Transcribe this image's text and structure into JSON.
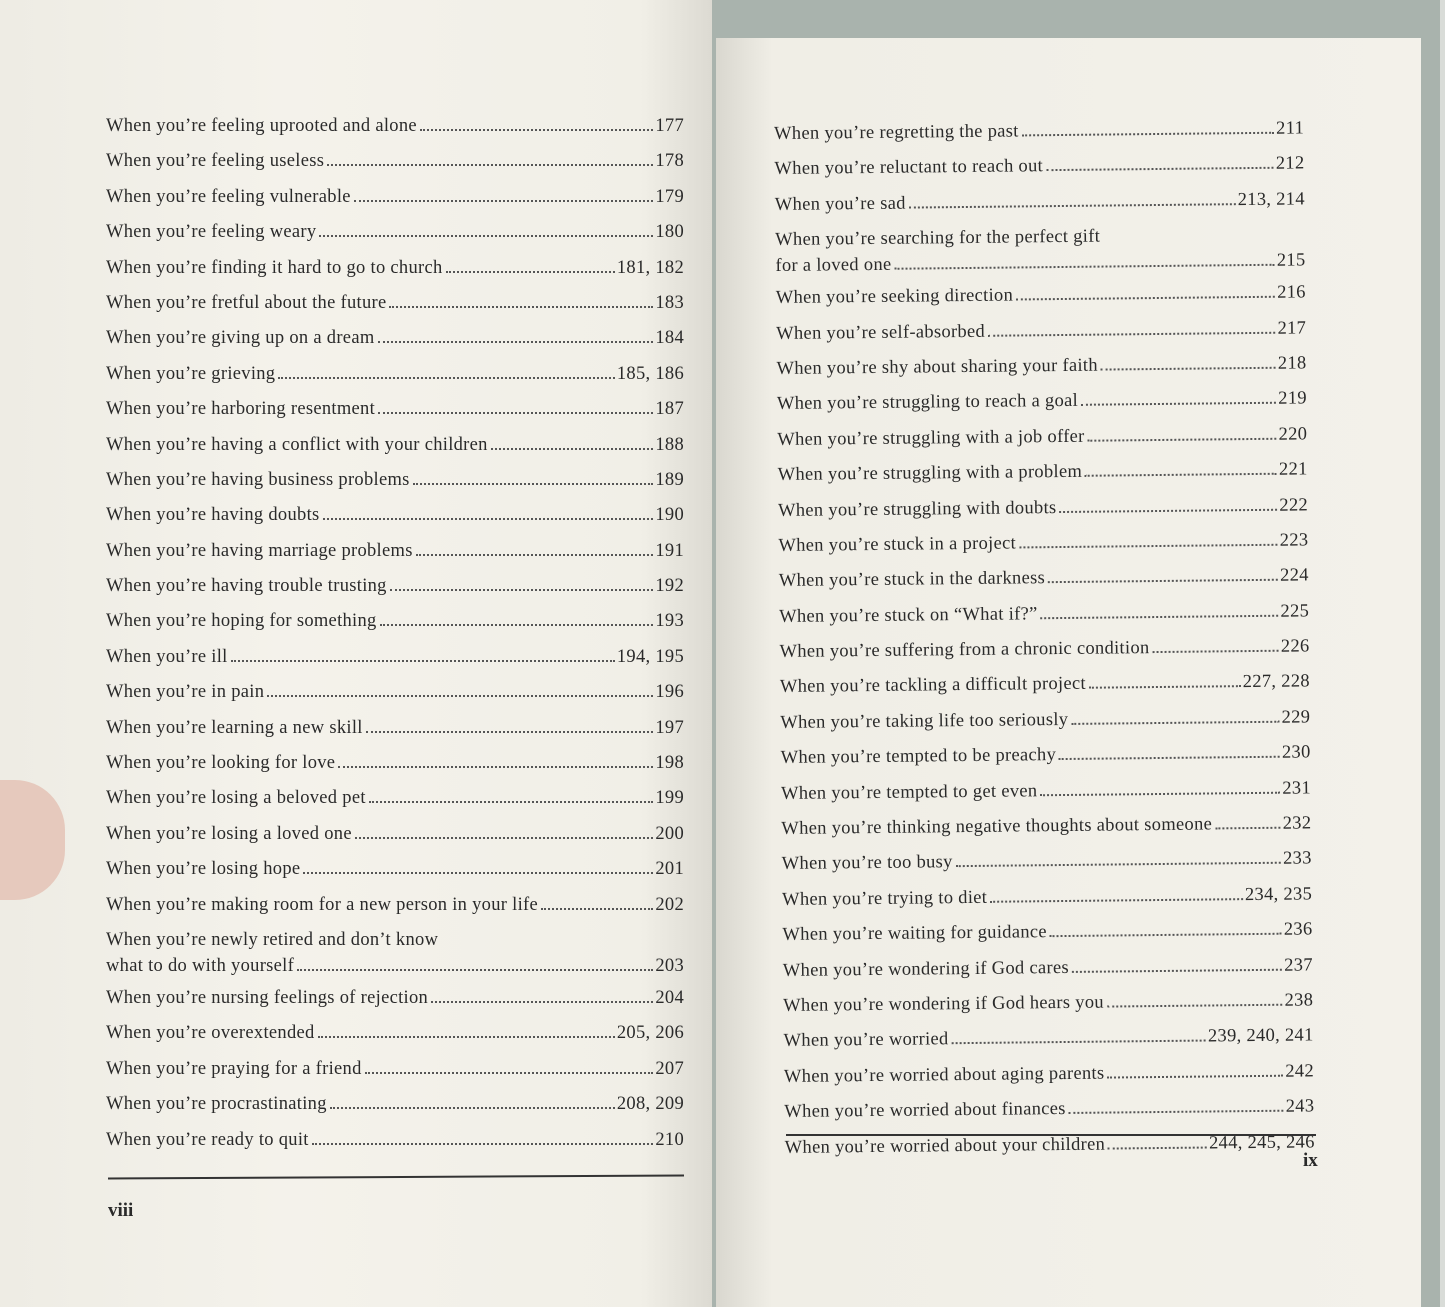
{
  "left_page": {
    "folio": "viii",
    "entries": [
      {
        "t": "When you’re feeling uprooted and alone",
        "p": "177"
      },
      {
        "t": "When you’re feeling useless",
        "p": "178"
      },
      {
        "t": "When you’re feeling vulnerable",
        "p": "179"
      },
      {
        "t": "When you’re feeling weary",
        "p": "180"
      },
      {
        "t": "When you’re finding it hard to go to church",
        "p": "181, 182"
      },
      {
        "t": "When you’re fretful about the future",
        "p": "183"
      },
      {
        "t": "When you’re giving up on a dream",
        "p": "184"
      },
      {
        "t": "When you’re grieving",
        "p": "185, 186"
      },
      {
        "t": "When you’re harboring resentment",
        "p": "187"
      },
      {
        "t": "When you’re having a conflict with your children",
        "p": "188"
      },
      {
        "t": "When you’re having business problems",
        "p": "189"
      },
      {
        "t": "When you’re having doubts",
        "p": "190"
      },
      {
        "t": "When you’re having marriage problems",
        "p": "191"
      },
      {
        "t": "When you’re having trouble trusting",
        "p": "192"
      },
      {
        "t": "When you’re hoping for something",
        "p": "193"
      },
      {
        "t": "When you’re ill",
        "p": "194, 195"
      },
      {
        "t": "When you’re in pain",
        "p": "196"
      },
      {
        "t": "When you’re learning a new skill",
        "p": "197"
      },
      {
        "t": "When you’re looking for love",
        "p": "198"
      },
      {
        "t": "When you’re losing a beloved pet",
        "p": "199"
      },
      {
        "t": "When you’re losing a loved one",
        "p": "200"
      },
      {
        "t": "When you’re losing hope",
        "p": "201"
      },
      {
        "t": "When you’re making room for a new person in your life",
        "p": "202"
      },
      {
        "t": "When you’re newly retired and don’t know",
        "t2": "what to do with yourself",
        "p": "203"
      },
      {
        "t": "When you’re nursing feelings of rejection",
        "p": "204"
      },
      {
        "t": "When you’re overextended",
        "p": "205, 206"
      },
      {
        "t": "When you’re praying for a friend",
        "p": "207"
      },
      {
        "t": "When you’re procrastinating",
        "p": "208, 209"
      },
      {
        "t": "When you’re ready to quit",
        "p": "210"
      }
    ]
  },
  "right_page": {
    "folio": "ix",
    "entries": [
      {
        "t": "When you’re regretting the past",
        "p": "211"
      },
      {
        "t": "When you’re reluctant to reach out",
        "p": "212"
      },
      {
        "t": "When you’re sad",
        "p": "213, 214"
      },
      {
        "t": "When you’re searching for the perfect gift",
        "t2": "for a loved one",
        "p": "215"
      },
      {
        "t": "When you’re seeking direction",
        "p": "216"
      },
      {
        "t": "When you’re self-absorbed",
        "p": "217"
      },
      {
        "t": "When you’re shy about sharing your faith",
        "p": "218"
      },
      {
        "t": "When you’re struggling to reach a goal",
        "p": "219"
      },
      {
        "t": "When you’re struggling with a job offer",
        "p": "220"
      },
      {
        "t": "When you’re struggling with a problem",
        "p": "221"
      },
      {
        "t": "When you’re struggling with doubts",
        "p": "222"
      },
      {
        "t": "When you’re stuck in a project",
        "p": "223"
      },
      {
        "t": "When you’re stuck in the darkness",
        "p": "224"
      },
      {
        "t": "When you’re stuck on “What if?”",
        "p": "225"
      },
      {
        "t": "When you’re suffering from a chronic condition",
        "p": "226"
      },
      {
        "t": "When you’re tackling a difficult project",
        "p": "227, 228"
      },
      {
        "t": "When you’re taking life too seriously",
        "p": "229"
      },
      {
        "t": "When you’re tempted to be preachy",
        "p": "230"
      },
      {
        "t": "When you’re tempted to get even",
        "p": "231"
      },
      {
        "t": "When you’re thinking negative thoughts about someone",
        "p": "232"
      },
      {
        "t": "When you’re too busy",
        "p": "233"
      },
      {
        "t": "When you’re trying to diet",
        "p": "234, 235"
      },
      {
        "t": "When you’re waiting for guidance",
        "p": "236"
      },
      {
        "t": "When you’re wondering if God cares",
        "p": "237"
      },
      {
        "t": "When you’re wondering if God hears you",
        "p": "238"
      },
      {
        "t": "When you’re worried",
        "p": "239, 240, 241"
      },
      {
        "t": "When you’re worried about aging parents",
        "p": "242"
      },
      {
        "t": "When you’re worried about finances",
        "p": "243"
      },
      {
        "t": "When you’re worried about your children",
        "p": "244, 245, 246"
      }
    ]
  }
}
